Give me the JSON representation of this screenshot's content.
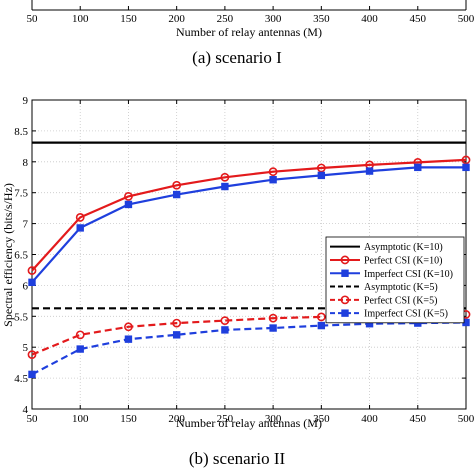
{
  "top_panel": {
    "x_ticks": [
      "50",
      "100",
      "150",
      "200",
      "250",
      "300",
      "350",
      "400",
      "450",
      "500"
    ],
    "xlabel": "Number of relay antennas (M)",
    "caption": "(a) scenario I"
  },
  "bottom_panel": {
    "ylabel": "Spectral efficiency (bits/s/Hz)",
    "xlabel": "Number of relay antennas (M)",
    "caption": "(b) scenario II"
  },
  "chart_data": {
    "type": "line",
    "x": [
      50,
      100,
      150,
      200,
      250,
      300,
      350,
      400,
      450,
      500
    ],
    "x_ticks": [
      50,
      100,
      150,
      200,
      250,
      300,
      350,
      400,
      450,
      500
    ],
    "y_ticks": [
      4,
      4.5,
      5,
      5.5,
      6,
      6.5,
      7,
      7.5,
      8,
      8.5,
      9
    ],
    "xlim": [
      50,
      500
    ],
    "ylim": [
      4,
      9
    ],
    "xlabel": "Number of relay antennas (M)",
    "ylabel": "Spectral efficiency (bits/s/Hz)",
    "grid": true,
    "legend_position": "center-right",
    "series": [
      {
        "name": "Asymptotic (K=10)",
        "color": "#000000",
        "dash": "solid",
        "marker": "none",
        "values": [
          8.31,
          8.31,
          8.31,
          8.31,
          8.31,
          8.31,
          8.31,
          8.31,
          8.31,
          8.31
        ]
      },
      {
        "name": "Perfect CSI (K=10)",
        "color": "#e31a1c",
        "dash": "solid",
        "marker": "circle",
        "values": [
          6.24,
          7.1,
          7.44,
          7.62,
          7.75,
          7.84,
          7.9,
          7.95,
          7.99,
          8.03
        ]
      },
      {
        "name": "Imperfect CSI (K=10)",
        "color": "#1f3fdd",
        "dash": "solid",
        "marker": "square",
        "values": [
          6.05,
          6.93,
          7.31,
          7.47,
          7.6,
          7.71,
          7.78,
          7.85,
          7.91,
          7.91
        ]
      },
      {
        "name": "Asymptotic (K=5)",
        "color": "#000000",
        "dash": "dashed",
        "marker": "none",
        "values": [
          5.63,
          5.63,
          5.63,
          5.63,
          5.63,
          5.63,
          5.63,
          5.63,
          5.63,
          5.63
        ]
      },
      {
        "name": "Perfect CSI (K=5)",
        "color": "#e31a1c",
        "dash": "dashed",
        "marker": "circle",
        "values": [
          4.88,
          5.2,
          5.33,
          5.39,
          5.43,
          5.47,
          5.49,
          5.49,
          5.52,
          5.53
        ]
      },
      {
        "name": "Imperfect CSI (K=5)",
        "color": "#1f3fdd",
        "dash": "dashed",
        "marker": "square",
        "values": [
          4.56,
          4.97,
          5.13,
          5.2,
          5.28,
          5.31,
          5.35,
          5.38,
          5.39,
          5.4
        ]
      }
    ]
  }
}
